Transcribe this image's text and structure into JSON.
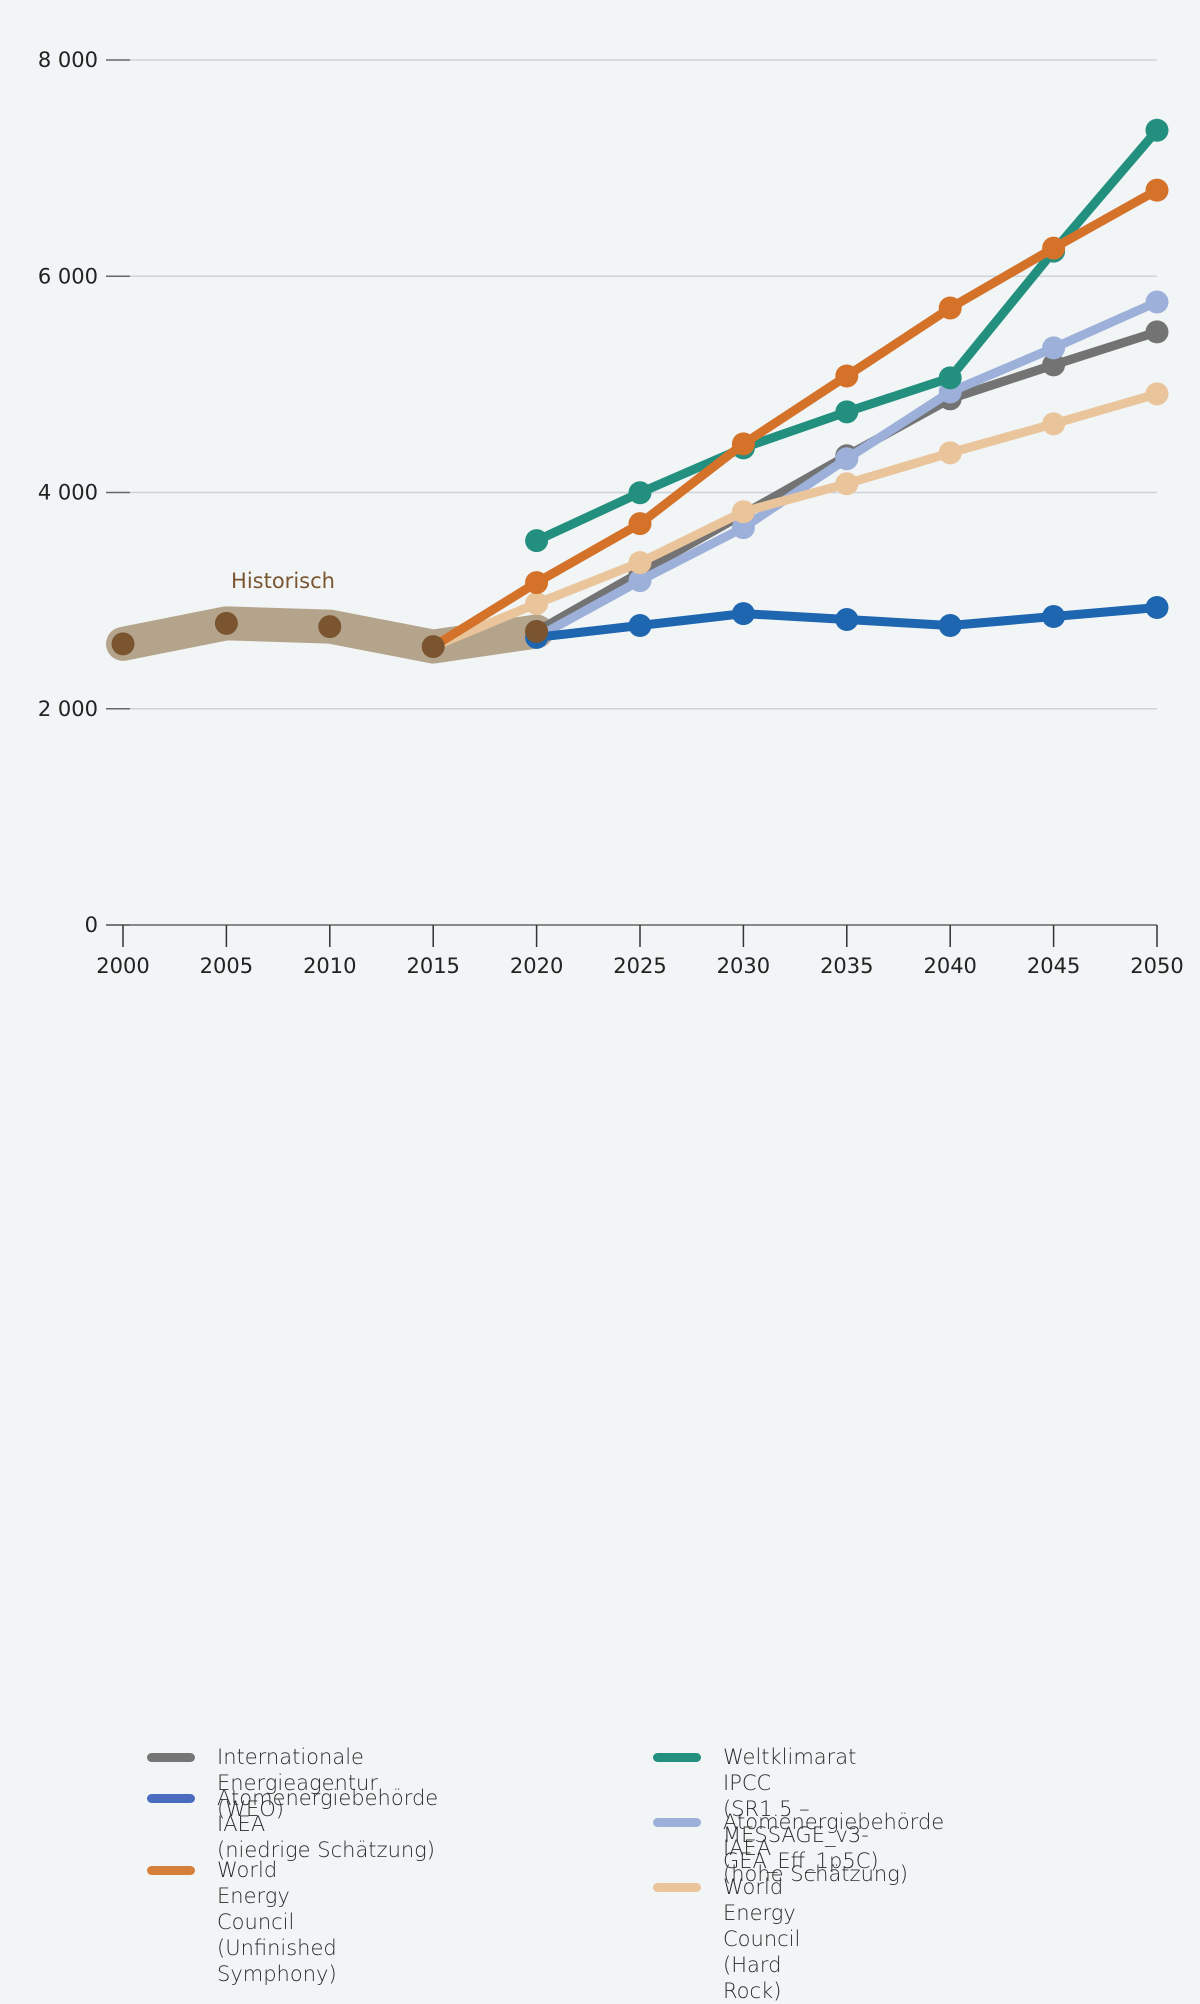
{
  "chart_data": {
    "type": "line",
    "title": "",
    "xlabel": "",
    "ylabel": "",
    "ylim": [
      0,
      8000
    ],
    "xlim": [
      2000,
      2050
    ],
    "grid": true,
    "y_ticks": [
      0,
      2000,
      4000,
      6000,
      8000
    ],
    "y_tick_labels": [
      "0",
      "2 000",
      "4 000",
      "6 000",
      "8 000"
    ],
    "x_ticks": [
      2000,
      2005,
      2010,
      2015,
      2020,
      2025,
      2030,
      2035,
      2040,
      2045,
      2050
    ],
    "x_tick_labels": [
      "2000",
      "2005",
      "2010",
      "2015",
      "2020",
      "2025",
      "2030",
      "2035",
      "2040",
      "2045",
      "2050"
    ],
    "annotation": "Historisch",
    "legend_placement": "bottom",
    "historical": {
      "name": "Historisch",
      "color": "#b5a48c",
      "marker_color": "#7a5530",
      "x": [
        2000,
        2005,
        2010,
        2015,
        2020
      ],
      "values": [
        2600,
        2790,
        2760,
        2575,
        2715
      ]
    },
    "series": [
      {
        "name": "Internationale Energieagentur (WEO)",
        "color": "#737373",
        "x": [
          2020,
          2025,
          2030,
          2035,
          2040,
          2045,
          2050
        ],
        "values": [
          2715,
          3260,
          3800,
          4340,
          4866,
          5180,
          5485
        ]
      },
      {
        "name": "Atomenergiebehörde IAEA (hohe Schätzung)",
        "color": "#9db0d9",
        "x": [
          2020,
          2025,
          2030,
          2035,
          2040,
          2045,
          2050
        ],
        "values": [
          2660,
          3185,
          3675,
          4312,
          4930,
          5337,
          5762
        ]
      },
      {
        "name": "Atomenergiebehörde IAEA (niedrige Schätzung)",
        "color": "#1f66b0",
        "x": [
          2020,
          2025,
          2030,
          2035,
          2040,
          2045,
          2050
        ],
        "values": [
          2660,
          2770,
          2880,
          2825,
          2770,
          2853,
          2936
        ]
      },
      {
        "name": "World Energy Council (Hard Rock)",
        "color": "#eac49a",
        "x": [
          2015,
          2020,
          2025,
          2030,
          2035,
          2040,
          2045,
          2050
        ],
        "values": [
          2575,
          2973,
          3352,
          3822,
          4081,
          4367,
          4635,
          4912
        ]
      },
      {
        "name": "Weltklimarat IPCC (SR1.5 – MESSAGE_v3-GEA_Eff_1p5C)",
        "color": "#23907f",
        "x": [
          2020,
          2025,
          2030,
          2035,
          2040,
          2045,
          2050
        ],
        "values": [
          3555,
          3998,
          4413,
          4746,
          5060,
          6232,
          7350
        ]
      },
      {
        "name": "World Energy Council (Unfinished Symphony)",
        "color": "#d4722a",
        "x": [
          2015,
          2020,
          2025,
          2030,
          2035,
          2040,
          2045,
          2050
        ],
        "values": [
          2575,
          3167,
          3712,
          4450,
          5078,
          5706,
          6260,
          6796
        ]
      }
    ]
  },
  "legend": {
    "left": [
      {
        "label": "Internationale Energieagentur (WEO)",
        "color": "#757575"
      },
      {
        "label": "Atomenergiebehörde IAEA\n(niedrige Schätzung)",
        "color": "#4a6cbf"
      },
      {
        "label": "World Energy Council\n(Unfinished Symphony)",
        "color": "#d4803a"
      }
    ],
    "right": [
      {
        "label": "Weltklimarat IPCC\n(SR1.5 – MESSAGE_v3-GEA_Eff_1p5C)",
        "color": "#23907f"
      },
      {
        "label": "Atomenergiebehörde IAEA\n(hohe Schätzung)",
        "color": "#9db0d9"
      },
      {
        "label": "World Energy Council (Hard Rock)",
        "color": "#eac49a"
      }
    ]
  }
}
